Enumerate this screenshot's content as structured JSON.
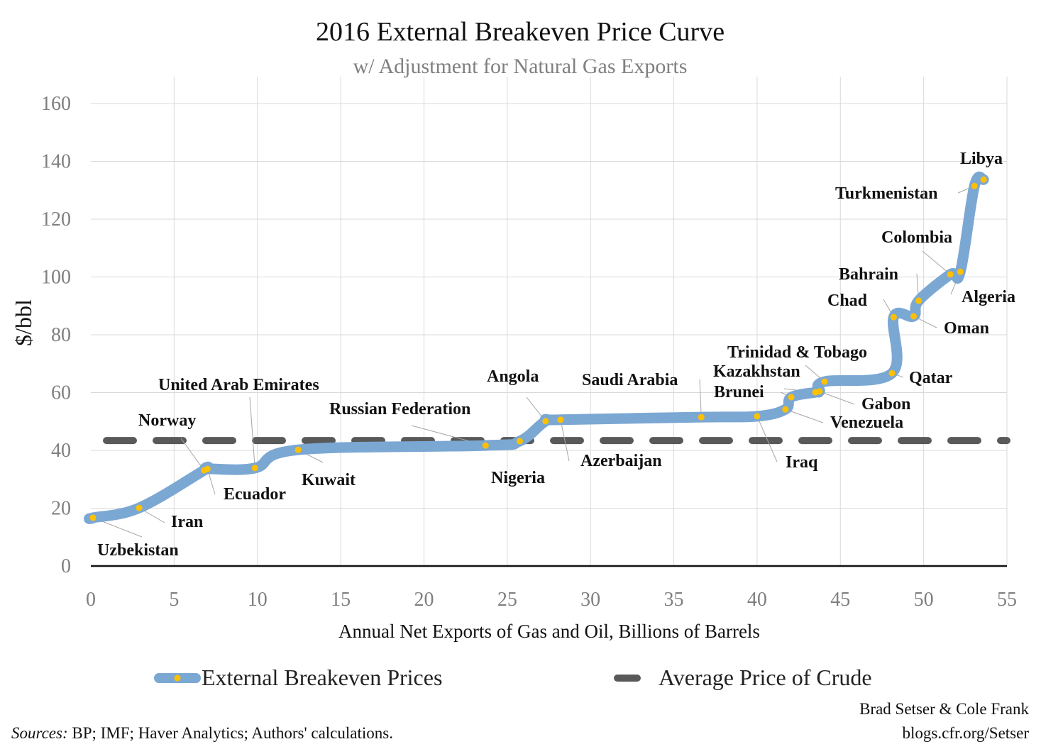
{
  "chart_data": {
    "type": "line",
    "title": "2016 External Breakeven Price Curve",
    "subtitle": "w/ Adjustment for Natural Gas Exports",
    "xlabel": "Annual Net Exports of Gas and Oil, Billions of Barrels",
    "ylabel": "$/bbl",
    "xlim": [
      0,
      55
    ],
    "ylim": [
      0,
      160
    ],
    "xticks": [
      0,
      5,
      10,
      15,
      20,
      25,
      30,
      35,
      40,
      45,
      50,
      55
    ],
    "yticks": [
      0,
      20,
      40,
      60,
      80,
      100,
      120,
      140,
      160
    ],
    "grid": true,
    "legend_position": "bottom",
    "colors": {
      "curve": "#7BA7D3",
      "points": "#FFC000",
      "crude": "#595959",
      "grid": "#d9d9d9"
    },
    "series": [
      {
        "name": "External Breakeven Prices",
        "points": [
          {
            "label": "Uzbekistan",
            "x": 0.13,
            "y": 16.7
          },
          {
            "label": "Iran",
            "x": 2.9,
            "y": 20.1
          },
          {
            "label": "Norway",
            "x": 6.8,
            "y": 33.1
          },
          {
            "label": "Ecuador",
            "x": 7.0,
            "y": 33.6
          },
          {
            "label": "United Arab Emirates",
            "x": 9.85,
            "y": 33.9
          },
          {
            "label": "Kuwait",
            "x": 12.45,
            "y": 40.2
          },
          {
            "label": "Russian Federation",
            "x": 23.7,
            "y": 41.7
          },
          {
            "label": "Nigeria",
            "x": 25.75,
            "y": 43.2
          },
          {
            "label": "Angola",
            "x": 27.3,
            "y": 50.1
          },
          {
            "label": "Azerbaijan",
            "x": 28.2,
            "y": 50.6
          },
          {
            "label": "Saudi Arabia",
            "x": 36.65,
            "y": 51.5
          },
          {
            "label": "Iraq",
            "x": 40.0,
            "y": 51.8
          },
          {
            "label": "Venezuela",
            "x": 41.7,
            "y": 54.2
          },
          {
            "label": "Brunei",
            "x": 42.05,
            "y": 58.4
          },
          {
            "label": "Kazakhstan",
            "x": 43.5,
            "y": 60.1
          },
          {
            "label": "Gabon",
            "x": 43.75,
            "y": 60.4
          },
          {
            "label": "Trinidad & Tobago",
            "x": 44.05,
            "y": 63.8
          },
          {
            "label": "Qatar",
            "x": 48.1,
            "y": 66.7
          },
          {
            "label": "Chad",
            "x": 48.2,
            "y": 86.1
          },
          {
            "label": "Oman",
            "x": 49.4,
            "y": 86.4
          },
          {
            "label": "Bahrain",
            "x": 49.7,
            "y": 91.8
          },
          {
            "label": "Colombia",
            "x": 51.6,
            "y": 100.9
          },
          {
            "label": "Algeria",
            "x": 52.2,
            "y": 101.8
          },
          {
            "label": "Turkmenistan",
            "x": 53.05,
            "y": 131.5
          },
          {
            "label": "Libya",
            "x": 53.6,
            "y": 133.7
          }
        ]
      },
      {
        "name": "Average Price of Crude",
        "y": 43.4,
        "style": "dashed"
      }
    ]
  },
  "footer": {
    "sources_label": "Sources:",
    "sources_text": " BP; IMF; Haver Analytics; Authors' calculations.",
    "authors": "Brad Setser & Cole Frank",
    "site": "blogs.cfr.org/Setser"
  }
}
